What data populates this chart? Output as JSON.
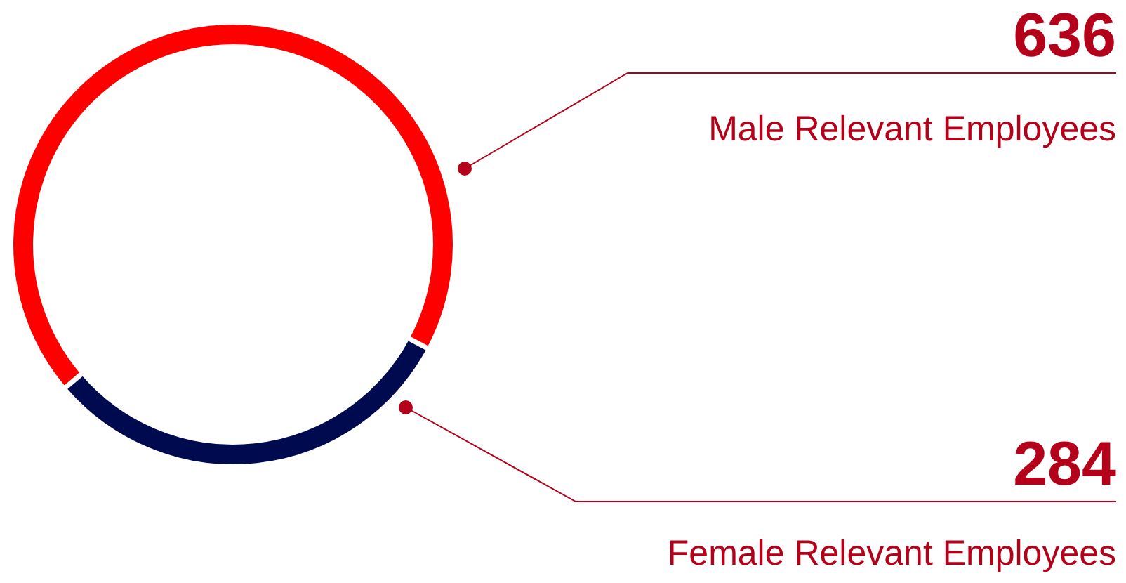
{
  "chart_data": {
    "type": "donut",
    "categories": [
      "Male Relevant Employees",
      "Female Relevant Employees"
    ],
    "values": [
      636,
      284
    ],
    "colors": [
      "#ff0000",
      "#000a4f"
    ],
    "data_labels": true
  }
}
